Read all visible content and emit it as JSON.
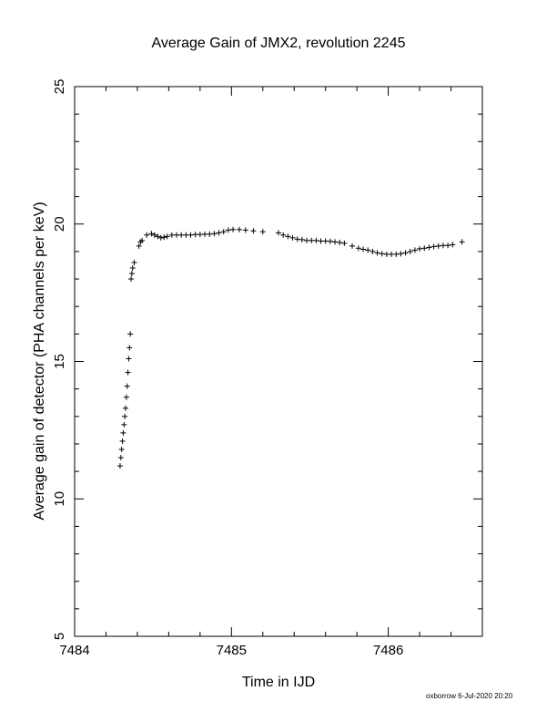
{
  "chart_data": {
    "type": "scatter",
    "title": "Average Gain of JMX2, revolution 2245",
    "xlabel": "Time in IJD",
    "ylabel": "Average gain of detector (PHA channels per keV)",
    "xlim": [
      7484,
      7486.6
    ],
    "ylim": [
      5,
      25
    ],
    "xticks": [
      7484,
      7485,
      7486
    ],
    "yticks": [
      5,
      10,
      15,
      20,
      25
    ],
    "marker": "+",
    "grid": false,
    "x": [
      7484.29,
      7484.295,
      7484.3,
      7484.305,
      7484.31,
      7484.315,
      7484.32,
      7484.325,
      7484.33,
      7484.335,
      7484.34,
      7484.345,
      7484.35,
      7484.355,
      7484.36,
      7484.365,
      7484.37,
      7484.38,
      7484.41,
      7484.42,
      7484.43,
      7484.46,
      7484.49,
      7484.51,
      7484.53,
      7484.55,
      7484.57,
      7484.59,
      7484.62,
      7484.65,
      7484.68,
      7484.71,
      7484.74,
      7484.77,
      7484.8,
      7484.83,
      7484.86,
      7484.89,
      7484.92,
      7484.95,
      7484.98,
      7485.01,
      7485.05,
      7485.09,
      7485.14,
      7485.2,
      7485.3,
      7485.33,
      7485.36,
      7485.39,
      7485.42,
      7485.45,
      7485.48,
      7485.51,
      7485.54,
      7485.57,
      7485.6,
      7485.63,
      7485.66,
      7485.69,
      7485.72,
      7485.77,
      7485.81,
      7485.84,
      7485.87,
      7485.9,
      7485.93,
      7485.96,
      7485.99,
      7486.02,
      7486.05,
      7486.08,
      7486.11,
      7486.14,
      7486.17,
      7486.2,
      7486.23,
      7486.26,
      7486.29,
      7486.32,
      7486.35,
      7486.38,
      7486.41,
      7486.47
    ],
    "y": [
      11.2,
      11.5,
      11.8,
      12.1,
      12.4,
      12.7,
      13.0,
      13.3,
      13.7,
      14.1,
      14.6,
      15.1,
      15.5,
      16.0,
      18.0,
      18.2,
      18.4,
      18.6,
      19.2,
      19.35,
      19.4,
      19.6,
      19.65,
      19.6,
      19.55,
      19.5,
      19.52,
      19.55,
      19.6,
      19.6,
      19.6,
      19.6,
      19.6,
      19.62,
      19.62,
      19.63,
      19.63,
      19.65,
      19.68,
      19.72,
      19.78,
      19.8,
      19.8,
      19.78,
      19.75,
      19.72,
      19.68,
      19.6,
      19.55,
      19.5,
      19.45,
      19.43,
      19.4,
      19.4,
      19.4,
      19.38,
      19.38,
      19.37,
      19.35,
      19.33,
      19.3,
      19.2,
      19.12,
      19.08,
      19.05,
      19.0,
      18.95,
      18.92,
      18.9,
      18.9,
      18.9,
      18.92,
      18.95,
      19.0,
      19.05,
      19.1,
      19.12,
      19.15,
      19.18,
      19.2,
      19.22,
      19.22,
      19.25,
      19.35
    ]
  },
  "footer": "oxborrow  6-Jul-2020 20:20"
}
